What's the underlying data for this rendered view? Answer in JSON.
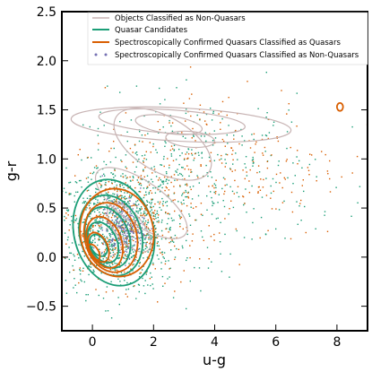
{
  "chart_data": {
    "type": "scatter",
    "title": "",
    "xlabel": "u-g",
    "ylabel": "g-r",
    "xlim": [
      -1,
      9
    ],
    "ylim": [
      -0.75,
      2.5
    ],
    "x_ticks": [
      0,
      2,
      4,
      6,
      8
    ],
    "y_ticks": [
      -0.5,
      0.0,
      0.5,
      1.0,
      1.5,
      2.0,
      2.5
    ],
    "x_tick_labels": [
      "0",
      "2",
      "4",
      "6",
      "8"
    ],
    "y_tick_labels": [
      "−0.5",
      "0.0",
      "0.5",
      "1.0",
      "1.5",
      "2.0",
      "2.5"
    ],
    "grid": false,
    "legend_position": "top",
    "series": [
      {
        "name": "Objects Classified as Non-Quasars",
        "kind": "contour",
        "color": "#c8b4b4",
        "contours": [
          {
            "cx": 2.9,
            "cy": 1.35,
            "rx": 3.6,
            "ry": 0.17,
            "tilt": -3
          },
          {
            "cx": 2.6,
            "cy": 1.38,
            "rx": 2.4,
            "ry": 0.12,
            "tilt": -4
          },
          {
            "cx": 2.5,
            "cy": 1.35,
            "rx": 1.1,
            "ry": 0.09,
            "tilt": -8
          },
          {
            "cx": 2.3,
            "cy": 1.15,
            "rx": 0.9,
            "ry": 0.55,
            "tilt": 60
          },
          {
            "cx": 1.6,
            "cy": 0.55,
            "rx": 0.7,
            "ry": 0.55,
            "tilt": 55
          },
          {
            "cx": 1.2,
            "cy": 0.3,
            "rx": 0.45,
            "ry": 0.3,
            "tilt": 40
          },
          {
            "cx": 3.2,
            "cy": 1.2,
            "rx": 0.8,
            "ry": 0.08,
            "tilt": -5
          }
        ]
      },
      {
        "name": "Quasar Candidates",
        "kind": "contour+points",
        "color": "#1b9e77",
        "contours": [
          {
            "cx": 0.7,
            "cy": 0.25,
            "rx": 1.3,
            "ry": 0.55,
            "tilt": 15
          },
          {
            "cx": 0.6,
            "cy": 0.22,
            "rx": 1.0,
            "ry": 0.42,
            "tilt": 18
          },
          {
            "cx": 0.5,
            "cy": 0.2,
            "rx": 0.7,
            "ry": 0.32,
            "tilt": 20
          },
          {
            "cx": 0.35,
            "cy": 0.15,
            "rx": 0.45,
            "ry": 0.22,
            "tilt": 25
          },
          {
            "cx": 0.2,
            "cy": 0.12,
            "rx": 0.25,
            "ry": 0.12,
            "tilt": 30
          }
        ]
      },
      {
        "name": "Spectroscopically Confirmed Quasars Classified as Quasars",
        "kind": "contour+points",
        "color": "#d95f02",
        "contours": [
          {
            "cx": 0.8,
            "cy": 0.25,
            "rx": 1.2,
            "ry": 0.45,
            "tilt": 10
          },
          {
            "cx": 0.6,
            "cy": 0.2,
            "rx": 0.85,
            "ry": 0.36,
            "tilt": 15
          },
          {
            "cx": 0.4,
            "cy": 0.15,
            "rx": 0.55,
            "ry": 0.27,
            "tilt": 20
          },
          {
            "cx": 0.2,
            "cy": 0.1,
            "rx": 0.3,
            "ry": 0.16,
            "tilt": 25
          },
          {
            "cx": 0.05,
            "cy": 0.05,
            "rx": 0.15,
            "ry": 0.09,
            "tilt": 30
          },
          {
            "cx": 8.1,
            "cy": 1.53,
            "rx": 0.1,
            "ry": 0.04,
            "tilt": 0
          }
        ]
      },
      {
        "name": "Spectroscopically Confirmed Quasars Classified as Non-Quasars",
        "kind": "points",
        "color": "#7570b3",
        "cluster": {
          "cx": 1.0,
          "cy": 0.3,
          "sx": 0.35,
          "sy": 0.15
        }
      }
    ],
    "point_clouds": [
      {
        "series": 1,
        "count": 900,
        "cx": 0.8,
        "cy": 0.3,
        "sx": 1.0,
        "sy": 0.32
      },
      {
        "series": 1,
        "count": 350,
        "cx": 3.5,
        "cy": 0.85,
        "sx": 1.9,
        "sy": 0.4
      },
      {
        "series": 2,
        "count": 380,
        "cx": 1.0,
        "cy": 0.3,
        "sx": 1.0,
        "sy": 0.3
      },
      {
        "series": 2,
        "count": 260,
        "cx": 4.2,
        "cy": 0.95,
        "sx": 2.0,
        "sy": 0.4
      },
      {
        "series": 3,
        "count": 260,
        "cx": 1.0,
        "cy": 0.3,
        "sx": 0.35,
        "sy": 0.15
      }
    ]
  }
}
